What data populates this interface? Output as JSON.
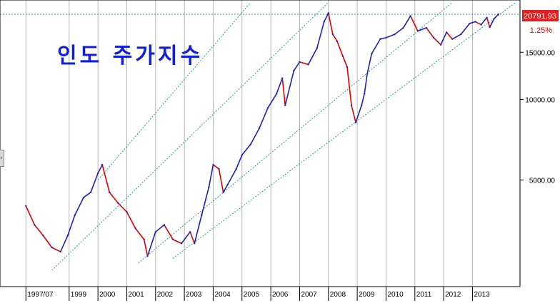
{
  "chart_data": {
    "type": "line",
    "title": "인도 주가지수",
    "y_scale": "log",
    "ylim": [
      2000,
      23500
    ],
    "y_ticks": [
      {
        "value": 15000,
        "label": "15000.00"
      },
      {
        "value": 10000,
        "label": "10000.00"
      },
      {
        "value": 5000,
        "label": "5000.00"
      }
    ],
    "x_ticks": [
      "1997/07",
      "1999",
      "2000",
      "2001",
      "2002",
      "2003",
      "2004",
      "2005",
      "2006",
      "2007",
      "2008",
      "2009",
      "2010",
      "2011",
      "2012",
      "2013"
    ],
    "last_value": {
      "label": "20791.93",
      "change": "1.25%",
      "value": 20791.93
    },
    "grid": "vertical",
    "series": [
      {
        "color": "#2020c0",
        "down_color": "#e00000",
        "values": [
          {
            "x": 1997.5,
            "y": 4000
          },
          {
            "x": 1997.8,
            "y": 3400
          },
          {
            "x": 1998.1,
            "y": 3100
          },
          {
            "x": 1998.4,
            "y": 2800
          },
          {
            "x": 1998.7,
            "y": 2700
          },
          {
            "x": 1998.95,
            "y": 3100
          },
          {
            "x": 1999.2,
            "y": 3700
          },
          {
            "x": 1999.5,
            "y": 4300
          },
          {
            "x": 1999.75,
            "y": 4500
          },
          {
            "x": 2000.0,
            "y": 5300
          },
          {
            "x": 2000.15,
            "y": 5700
          },
          {
            "x": 2000.4,
            "y": 4500
          },
          {
            "x": 2000.7,
            "y": 4100
          },
          {
            "x": 2001.0,
            "y": 3800
          },
          {
            "x": 2001.3,
            "y": 3300
          },
          {
            "x": 2001.6,
            "y": 3000
          },
          {
            "x": 2001.72,
            "y": 2600
          },
          {
            "x": 2002.0,
            "y": 3200
          },
          {
            "x": 2002.3,
            "y": 3400
          },
          {
            "x": 2002.6,
            "y": 3000
          },
          {
            "x": 2002.9,
            "y": 2900
          },
          {
            "x": 2003.2,
            "y": 3200
          },
          {
            "x": 2003.35,
            "y": 2900
          },
          {
            "x": 2003.6,
            "y": 3700
          },
          {
            "x": 2003.85,
            "y": 4700
          },
          {
            "x": 2004.0,
            "y": 5700
          },
          {
            "x": 2004.2,
            "y": 5500
          },
          {
            "x": 2004.35,
            "y": 4500
          },
          {
            "x": 2004.5,
            "y": 4800
          },
          {
            "x": 2004.8,
            "y": 5500
          },
          {
            "x": 2005.0,
            "y": 6200
          },
          {
            "x": 2005.3,
            "y": 6800
          },
          {
            "x": 2005.6,
            "y": 7800
          },
          {
            "x": 2005.9,
            "y": 9300
          },
          {
            "x": 2006.2,
            "y": 10500
          },
          {
            "x": 2006.4,
            "y": 12000
          },
          {
            "x": 2006.5,
            "y": 9500
          },
          {
            "x": 2006.8,
            "y": 12800
          },
          {
            "x": 2007.0,
            "y": 13800
          },
          {
            "x": 2007.3,
            "y": 13500
          },
          {
            "x": 2007.6,
            "y": 15500
          },
          {
            "x": 2007.85,
            "y": 19500
          },
          {
            "x": 2008.0,
            "y": 21000
          },
          {
            "x": 2008.15,
            "y": 17500
          },
          {
            "x": 2008.3,
            "y": 16500
          },
          {
            "x": 2008.5,
            "y": 14500
          },
          {
            "x": 2008.65,
            "y": 13200
          },
          {
            "x": 2008.8,
            "y": 9500
          },
          {
            "x": 2008.95,
            "y": 8200
          },
          {
            "x": 2009.15,
            "y": 9500
          },
          {
            "x": 2009.25,
            "y": 10500
          },
          {
            "x": 2009.35,
            "y": 12500
          },
          {
            "x": 2009.5,
            "y": 14800
          },
          {
            "x": 2009.8,
            "y": 16800
          },
          {
            "x": 2010.0,
            "y": 17000
          },
          {
            "x": 2010.3,
            "y": 17500
          },
          {
            "x": 2010.6,
            "y": 18500
          },
          {
            "x": 2010.85,
            "y": 20500
          },
          {
            "x": 2011.1,
            "y": 18000
          },
          {
            "x": 2011.4,
            "y": 18500
          },
          {
            "x": 2011.65,
            "y": 17000
          },
          {
            "x": 2011.9,
            "y": 16000
          },
          {
            "x": 2012.1,
            "y": 17800
          },
          {
            "x": 2012.3,
            "y": 16800
          },
          {
            "x": 2012.6,
            "y": 17500
          },
          {
            "x": 2012.9,
            "y": 19200
          },
          {
            "x": 2013.1,
            "y": 19500
          },
          {
            "x": 2013.3,
            "y": 19000
          },
          {
            "x": 2013.5,
            "y": 20200
          },
          {
            "x": 2013.6,
            "y": 18600
          },
          {
            "x": 2013.75,
            "y": 20000
          },
          {
            "x": 2013.9,
            "y": 20791.93
          }
        ]
      }
    ],
    "trend_channel": [
      {
        "x0": 1998.4,
        "y0": 2300,
        "x1": 2008.0,
        "y1": 23000
      },
      {
        "x0": 2000.0,
        "y0": 5000,
        "x1": 2005.3,
        "y1": 23000
      },
      {
        "x0": 2001.4,
        "y0": 2450,
        "x1": 2012.3,
        "y1": 23000
      },
      {
        "x0": 2002.6,
        "y0": 2550,
        "x1": 2014.5,
        "y1": 23000
      }
    ],
    "reference_level": 20791.93
  }
}
